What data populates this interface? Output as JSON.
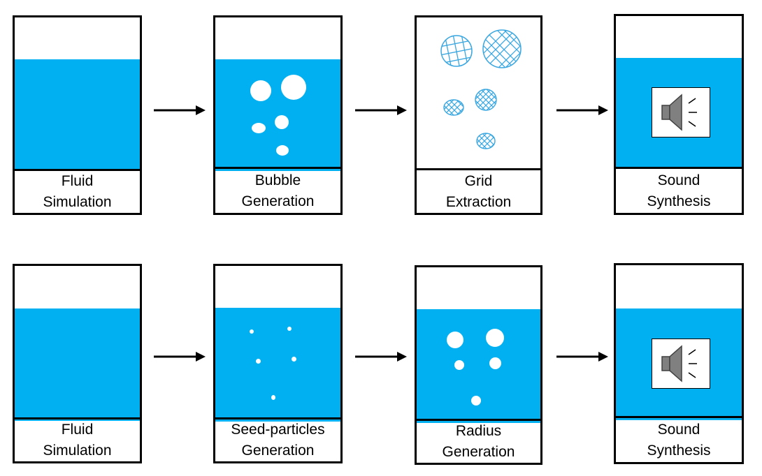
{
  "rows": [
    {
      "stages": [
        {
          "line1": "Fluid",
          "line2": "Simulation",
          "content": "water"
        },
        {
          "line1": "Bubble",
          "line2": "Generation",
          "content": "bubbles"
        },
        {
          "line1": "Grid",
          "line2": "Extraction",
          "content": "grid-bubbles"
        },
        {
          "line1": "Sound",
          "line2": "Synthesis",
          "content": "speaker"
        }
      ]
    },
    {
      "stages": [
        {
          "line1": "Fluid",
          "line2": "Simulation",
          "content": "water"
        },
        {
          "line1": "Seed-particles",
          "line2": "Generation",
          "content": "seed-particles"
        },
        {
          "line1": "Radius",
          "line2": "Generation",
          "content": "bubbles"
        },
        {
          "line1": "Sound",
          "line2": "Synthesis",
          "content": "speaker"
        }
      ]
    }
  ],
  "colors": {
    "water": "#00b0f0",
    "grid": "#3aa7e0",
    "speaker": "#808080",
    "border": "#000000"
  },
  "icons": {
    "arrow": "right-arrow-icon",
    "speaker": "speaker-icon"
  }
}
